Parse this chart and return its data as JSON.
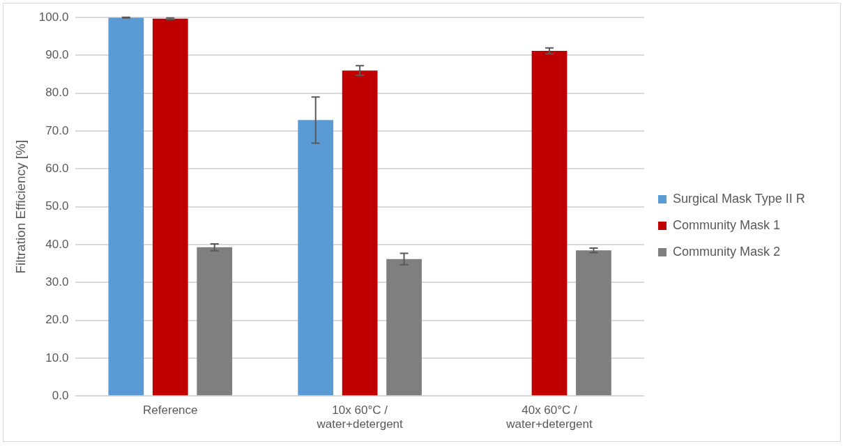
{
  "chart_data": {
    "type": "bar",
    "ylabel": "Filtration Efficiency [%]",
    "categories": [
      "Reference",
      "10x 60°C / water+detergent",
      "40x 60°C / water+detergent"
    ],
    "series": [
      {
        "name": "Surgical Mask Type II R",
        "color": "#5b9bd5",
        "values": [
          100.0,
          72.9,
          null
        ],
        "errors": [
          0.1,
          6.1,
          null
        ]
      },
      {
        "name": "Community Mask 1",
        "color": "#c00000",
        "values": [
          99.7,
          86.0,
          91.2
        ],
        "errors": [
          0.2,
          1.3,
          0.8
        ]
      },
      {
        "name": "Community Mask 2",
        "color": "#7f7f7f",
        "values": [
          39.3,
          36.2,
          38.5
        ],
        "errors": [
          0.9,
          1.5,
          0.6
        ]
      }
    ],
    "ylim": [
      0,
      100
    ],
    "yticks": [
      {
        "value": 0,
        "label": "0.0"
      },
      {
        "value": 10,
        "label": "10.0"
      },
      {
        "value": 20,
        "label": "20.0"
      },
      {
        "value": 30,
        "label": "30.0"
      },
      {
        "value": 40,
        "label": "40.0"
      },
      {
        "value": 50,
        "label": "50.0"
      },
      {
        "value": 60,
        "label": "60.0"
      },
      {
        "value": 70,
        "label": "70.0"
      },
      {
        "value": 80,
        "label": "80.0"
      },
      {
        "value": 90,
        "label": "90.0"
      },
      {
        "value": 100,
        "label": "100.0"
      }
    ],
    "grid": "y",
    "legend": "right"
  }
}
